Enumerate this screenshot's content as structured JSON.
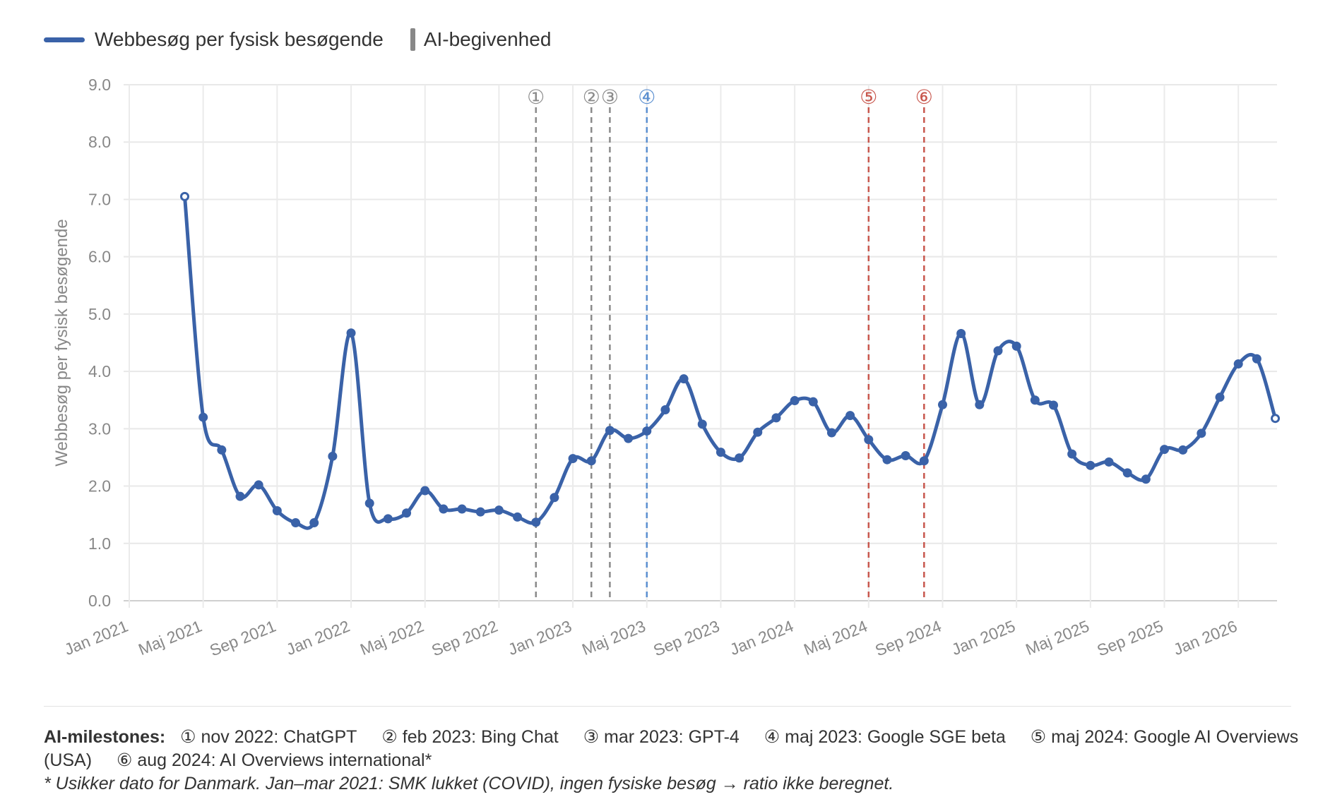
{
  "chart_data": {
    "type": "line",
    "ylabel": "Webbesøg per fysisk besøgende",
    "ylim": [
      0,
      9
    ],
    "yticks": [
      "0.0",
      "1.0",
      "2.0",
      "3.0",
      "4.0",
      "5.0",
      "6.0",
      "7.0",
      "8.0",
      "9.0"
    ],
    "xticks": [
      "Jan 2021",
      "Maj 2021",
      "Sep 2021",
      "Jan 2022",
      "Maj 2022",
      "Sep 2022",
      "Jan 2023",
      "Maj 2023",
      "Sep 2023",
      "Jan 2024",
      "Maj 2024",
      "Sep 2024",
      "Jan 2025",
      "Maj 2025",
      "Sep 2025",
      "Jan 2026"
    ],
    "grid": true,
    "legend_position": "top-left",
    "series": [
      {
        "name": "Webbesøg per fysisk besøgende",
        "color": "#3a62a8",
        "x": [
          "2021-04",
          "2021-05",
          "2021-06",
          "2021-07",
          "2021-08",
          "2021-09",
          "2021-10",
          "2021-11",
          "2021-12",
          "2022-01",
          "2022-02",
          "2022-03",
          "2022-04",
          "2022-05",
          "2022-06",
          "2022-07",
          "2022-08",
          "2022-09",
          "2022-10",
          "2022-11",
          "2022-12",
          "2023-01",
          "2023-02",
          "2023-03",
          "2023-04",
          "2023-05",
          "2023-06",
          "2023-07",
          "2023-08",
          "2023-09",
          "2023-10",
          "2023-11",
          "2023-12",
          "2024-01",
          "2024-02",
          "2024-03",
          "2024-04",
          "2024-05",
          "2024-06",
          "2024-07",
          "2024-08",
          "2024-09",
          "2024-10",
          "2024-11",
          "2024-12",
          "2025-01",
          "2025-02",
          "2025-03",
          "2025-04",
          "2025-05",
          "2025-06",
          "2025-07",
          "2025-08",
          "2025-09",
          "2025-10",
          "2025-11",
          "2025-12",
          "2026-01",
          "2026-02",
          "2026-03"
        ],
        "values": [
          7.05,
          3.2,
          2.63,
          1.82,
          2.02,
          1.57,
          1.36,
          1.36,
          2.52,
          4.67,
          1.7,
          1.43,
          1.53,
          1.92,
          1.6,
          1.6,
          1.55,
          1.58,
          1.46,
          1.37,
          1.8,
          2.48,
          2.44,
          2.97,
          2.83,
          2.96,
          3.33,
          3.87,
          3.08,
          2.59,
          2.49,
          2.94,
          3.19,
          3.49,
          3.47,
          2.93,
          3.23,
          2.81,
          2.46,
          2.53,
          2.44,
          3.42,
          4.66,
          3.42,
          4.36,
          4.44,
          3.5,
          3.41,
          2.56,
          2.36,
          2.42,
          2.23,
          2.12,
          2.64,
          2.63,
          2.92,
          3.55,
          4.13,
          4.22,
          3.18
        ]
      }
    ],
    "events": [
      {
        "label": "①",
        "date": "2022-11",
        "color": "#8a8a8a"
      },
      {
        "label": "②",
        "date": "2023-02",
        "color": "#8a8a8a"
      },
      {
        "label": "③",
        "date": "2023-03",
        "color": "#8a8a8a"
      },
      {
        "label": "④",
        "date": "2023-05",
        "color": "#5b8fd0"
      },
      {
        "label": "⑤",
        "date": "2024-05",
        "color": "#c8574d"
      },
      {
        "label": "⑥",
        "date": "2024-08",
        "color": "#c8574d"
      }
    ]
  },
  "legend": {
    "series_label": "Webbesøg per fysisk besøgende",
    "event_label": "AI-begivenhed"
  },
  "footer": {
    "title": "AI-milestones:",
    "milestones": [
      "① nov 2022: ChatGPT",
      "② feb 2023: Bing Chat",
      "③ mar 2023: GPT-4",
      "④ maj 2023: Google SGE beta",
      "⑤ maj 2024: Google AI Overviews (USA)",
      "⑥ aug 2024: AI Overviews international*"
    ],
    "note": "* Usikker dato for Danmark. Jan–mar 2021: SMK lukket (COVID), ingen fysiske besøg → ratio ikke beregnet."
  }
}
